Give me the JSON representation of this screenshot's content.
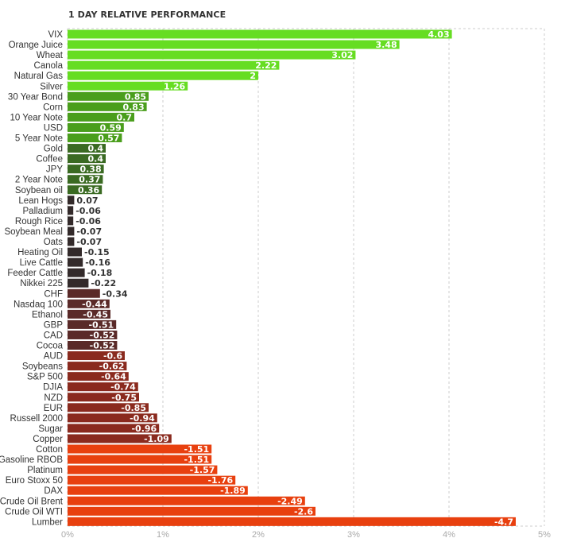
{
  "chart_data": {
    "type": "bar",
    "orientation": "horizontal",
    "title": "1 DAY RELATIVE PERFORMANCE",
    "xlabel": "",
    "ylabel": "",
    "xlim": [
      0,
      5
    ],
    "x_ticks": [
      "0%",
      "1%",
      "2%",
      "3%",
      "4%",
      "5%"
    ],
    "grid": true,
    "categories": [
      "VIX",
      "Orange Juice",
      "Wheat",
      "Canola",
      "Natural Gas",
      "Silver",
      "30 Year Bond",
      "Corn",
      "10 Year Note",
      "USD",
      "5 Year Note",
      "Gold",
      "Coffee",
      "JPY",
      "2 Year Note",
      "Soybean oil",
      "Lean Hogs",
      "Palladium",
      "Rough Rice",
      "Soybean Meal",
      "Oats",
      "Heating Oil",
      "Live Cattle",
      "Feeder Cattle",
      "Nikkei 225",
      "CHF",
      "Nasdaq 100",
      "Ethanol",
      "GBP",
      "CAD",
      "Cocoa",
      "AUD",
      "Soybeans",
      "S&P 500",
      "DJIA",
      "NZD",
      "EUR",
      "Russell 2000",
      "Sugar",
      "Copper",
      "Cotton",
      "Gasoline RBOB",
      "Platinum",
      "Euro Stoxx 50",
      "DAX",
      "Crude Oil Brent",
      "Crude Oil WTI",
      "Lumber"
    ],
    "values": [
      4.03,
      3.48,
      3.02,
      2.22,
      2,
      1.26,
      0.85,
      0.83,
      0.7,
      0.59,
      0.57,
      0.4,
      0.4,
      0.38,
      0.37,
      0.36,
      0.07,
      -0.06,
      -0.06,
      -0.07,
      -0.07,
      -0.15,
      -0.16,
      -0.18,
      -0.22,
      -0.34,
      -0.44,
      -0.45,
      -0.51,
      -0.52,
      -0.52,
      -0.6,
      -0.62,
      -0.64,
      -0.74,
      -0.75,
      -0.85,
      -0.94,
      -0.96,
      -1.09,
      -1.51,
      -1.51,
      -1.57,
      -1.76,
      -1.89,
      -2.49,
      -2.6,
      -4.7
    ],
    "value_labels": [
      "4.03",
      "3.48",
      "3.02",
      "2.22",
      "2",
      "1.26",
      "0.85",
      "0.83",
      "0.7",
      "0.59",
      "0.57",
      "0.4",
      "0.4",
      "0.38",
      "0.37",
      "0.36",
      "0.07",
      "-0.06",
      "-0.06",
      "-0.07",
      "-0.07",
      "-0.15",
      "-0.16",
      "-0.18",
      "-0.22",
      "-0.34",
      "-0.44",
      "-0.45",
      "-0.51",
      "-0.52",
      "-0.52",
      "-0.6",
      "-0.62",
      "-0.64",
      "-0.74",
      "-0.75",
      "-0.85",
      "-0.94",
      "-0.96",
      "-1.09",
      "-1.51",
      "-1.51",
      "-1.57",
      "-1.76",
      "-1.89",
      "-2.49",
      "-2.6",
      "-4.7"
    ],
    "note": "bar length encodes the absolute value; color encodes sign and magnitude (bright green = large gain, dark = near zero, bright red = large loss)",
    "colors": {
      "gain_strong": "#66dd22",
      "gain_medium": "#4a9e1c",
      "gain_weak": "#3a6a22",
      "neutral": "#332a2a",
      "loss_weak": "#5a2a28",
      "loss_medium": "#8a2a1e",
      "loss_strong": "#e8400f",
      "label_light": "#ffffff",
      "label_dark": "#333333"
    }
  }
}
